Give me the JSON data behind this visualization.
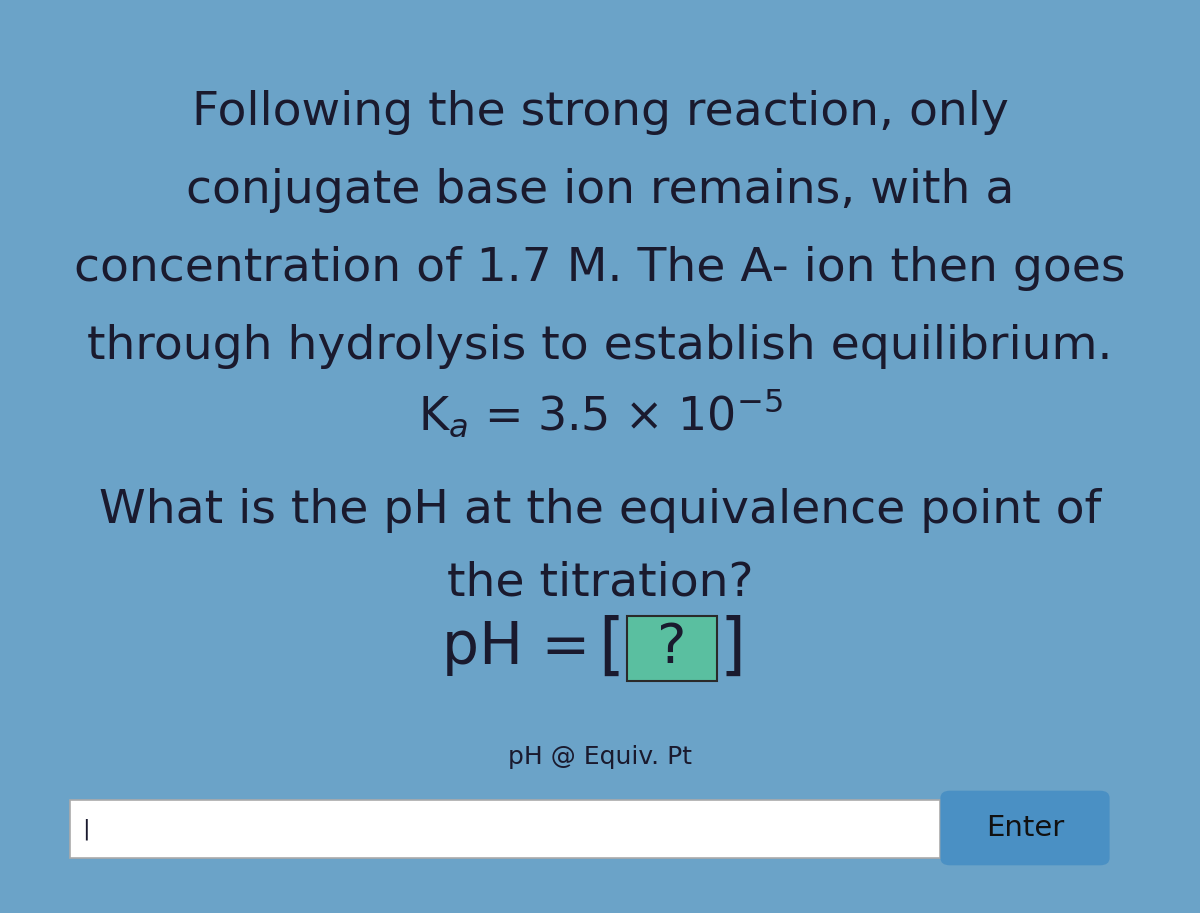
{
  "background_color": "#6ba3c8",
  "text_color": "#1a1a2e",
  "main_text_lines": [
    "Following the strong reaction, only",
    "conjugate base ion remains, with a",
    "concentration of 1.7 M. The A- ion then goes",
    "through hydrolysis to establish equilibrium."
  ],
  "ph_box_color": "#5abfa0",
  "label_text": "pH @ Equiv. Pt",
  "enter_button_color": "#4a90c4",
  "enter_text": "Enter",
  "figsize": [
    12.0,
    9.13
  ],
  "dpi": 100
}
